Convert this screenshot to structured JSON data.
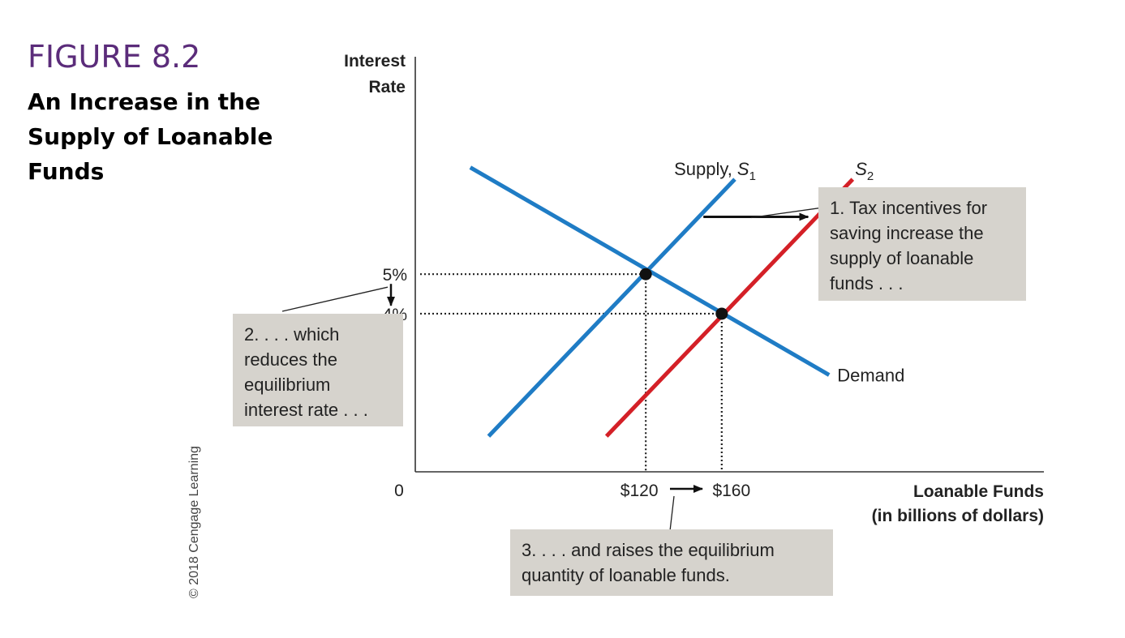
{
  "figure": {
    "number": "FIGURE 8.2",
    "title": "An Increase in the Supply of Loanable Funds",
    "copyright": "© 2018 Cengage Learning"
  },
  "colors": {
    "supply1": "#1f7cc5",
    "supply2": "#d42027",
    "demand": "#1f7cc5",
    "callout_bg": "#d6d3cd",
    "title": "#5b2c7a"
  },
  "chart_data": {
    "type": "line",
    "title": "An Increase in the Supply of Loanable Funds",
    "ylabel_line1": "Interest",
    "ylabel_line2": "Rate",
    "xlabel_line1": "Loanable Funds",
    "xlabel_line2": "(in billions of dollars)",
    "origin_label": "0",
    "xlim": [
      0,
      240
    ],
    "ylim": [
      0,
      10.5
    ],
    "series": [
      {
        "name": "Supply, S1",
        "label_main": "Supply, ",
        "label_var": "S",
        "label_sub": "1",
        "color": "#1f7cc5",
        "points": [
          [
            28,
            0.9
          ],
          [
            122,
            7.4
          ]
        ]
      },
      {
        "name": "S2",
        "label_main": "",
        "label_var": "S",
        "label_sub": "2",
        "color": "#d42027",
        "points": [
          [
            73,
            0.9
          ],
          [
            167,
            7.4
          ]
        ]
      },
      {
        "name": "Demand",
        "label_main": "Demand",
        "label_var": "",
        "label_sub": "",
        "color": "#1f7cc5",
        "points": [
          [
            21,
            7.7
          ],
          [
            158,
            2.45
          ]
        ]
      }
    ],
    "equilibria": [
      {
        "x": 88,
        "y": 5,
        "x_label": "$120",
        "y_label": "5%"
      },
      {
        "x": 117,
        "y": 4,
        "x_label": "$160",
        "y_label": "4%"
      }
    ],
    "shift_arrow": {
      "from": [
        110,
        6.45
      ],
      "to": [
        150,
        6.45
      ]
    }
  },
  "callouts": {
    "one": "1. Tax incentives for saving increase the supply of loanable funds . . .",
    "two": "2. . . . which reduces the equilibrium interest rate . . .",
    "three": "3. . . . and raises the equilibrium quantity of loanable funds."
  }
}
